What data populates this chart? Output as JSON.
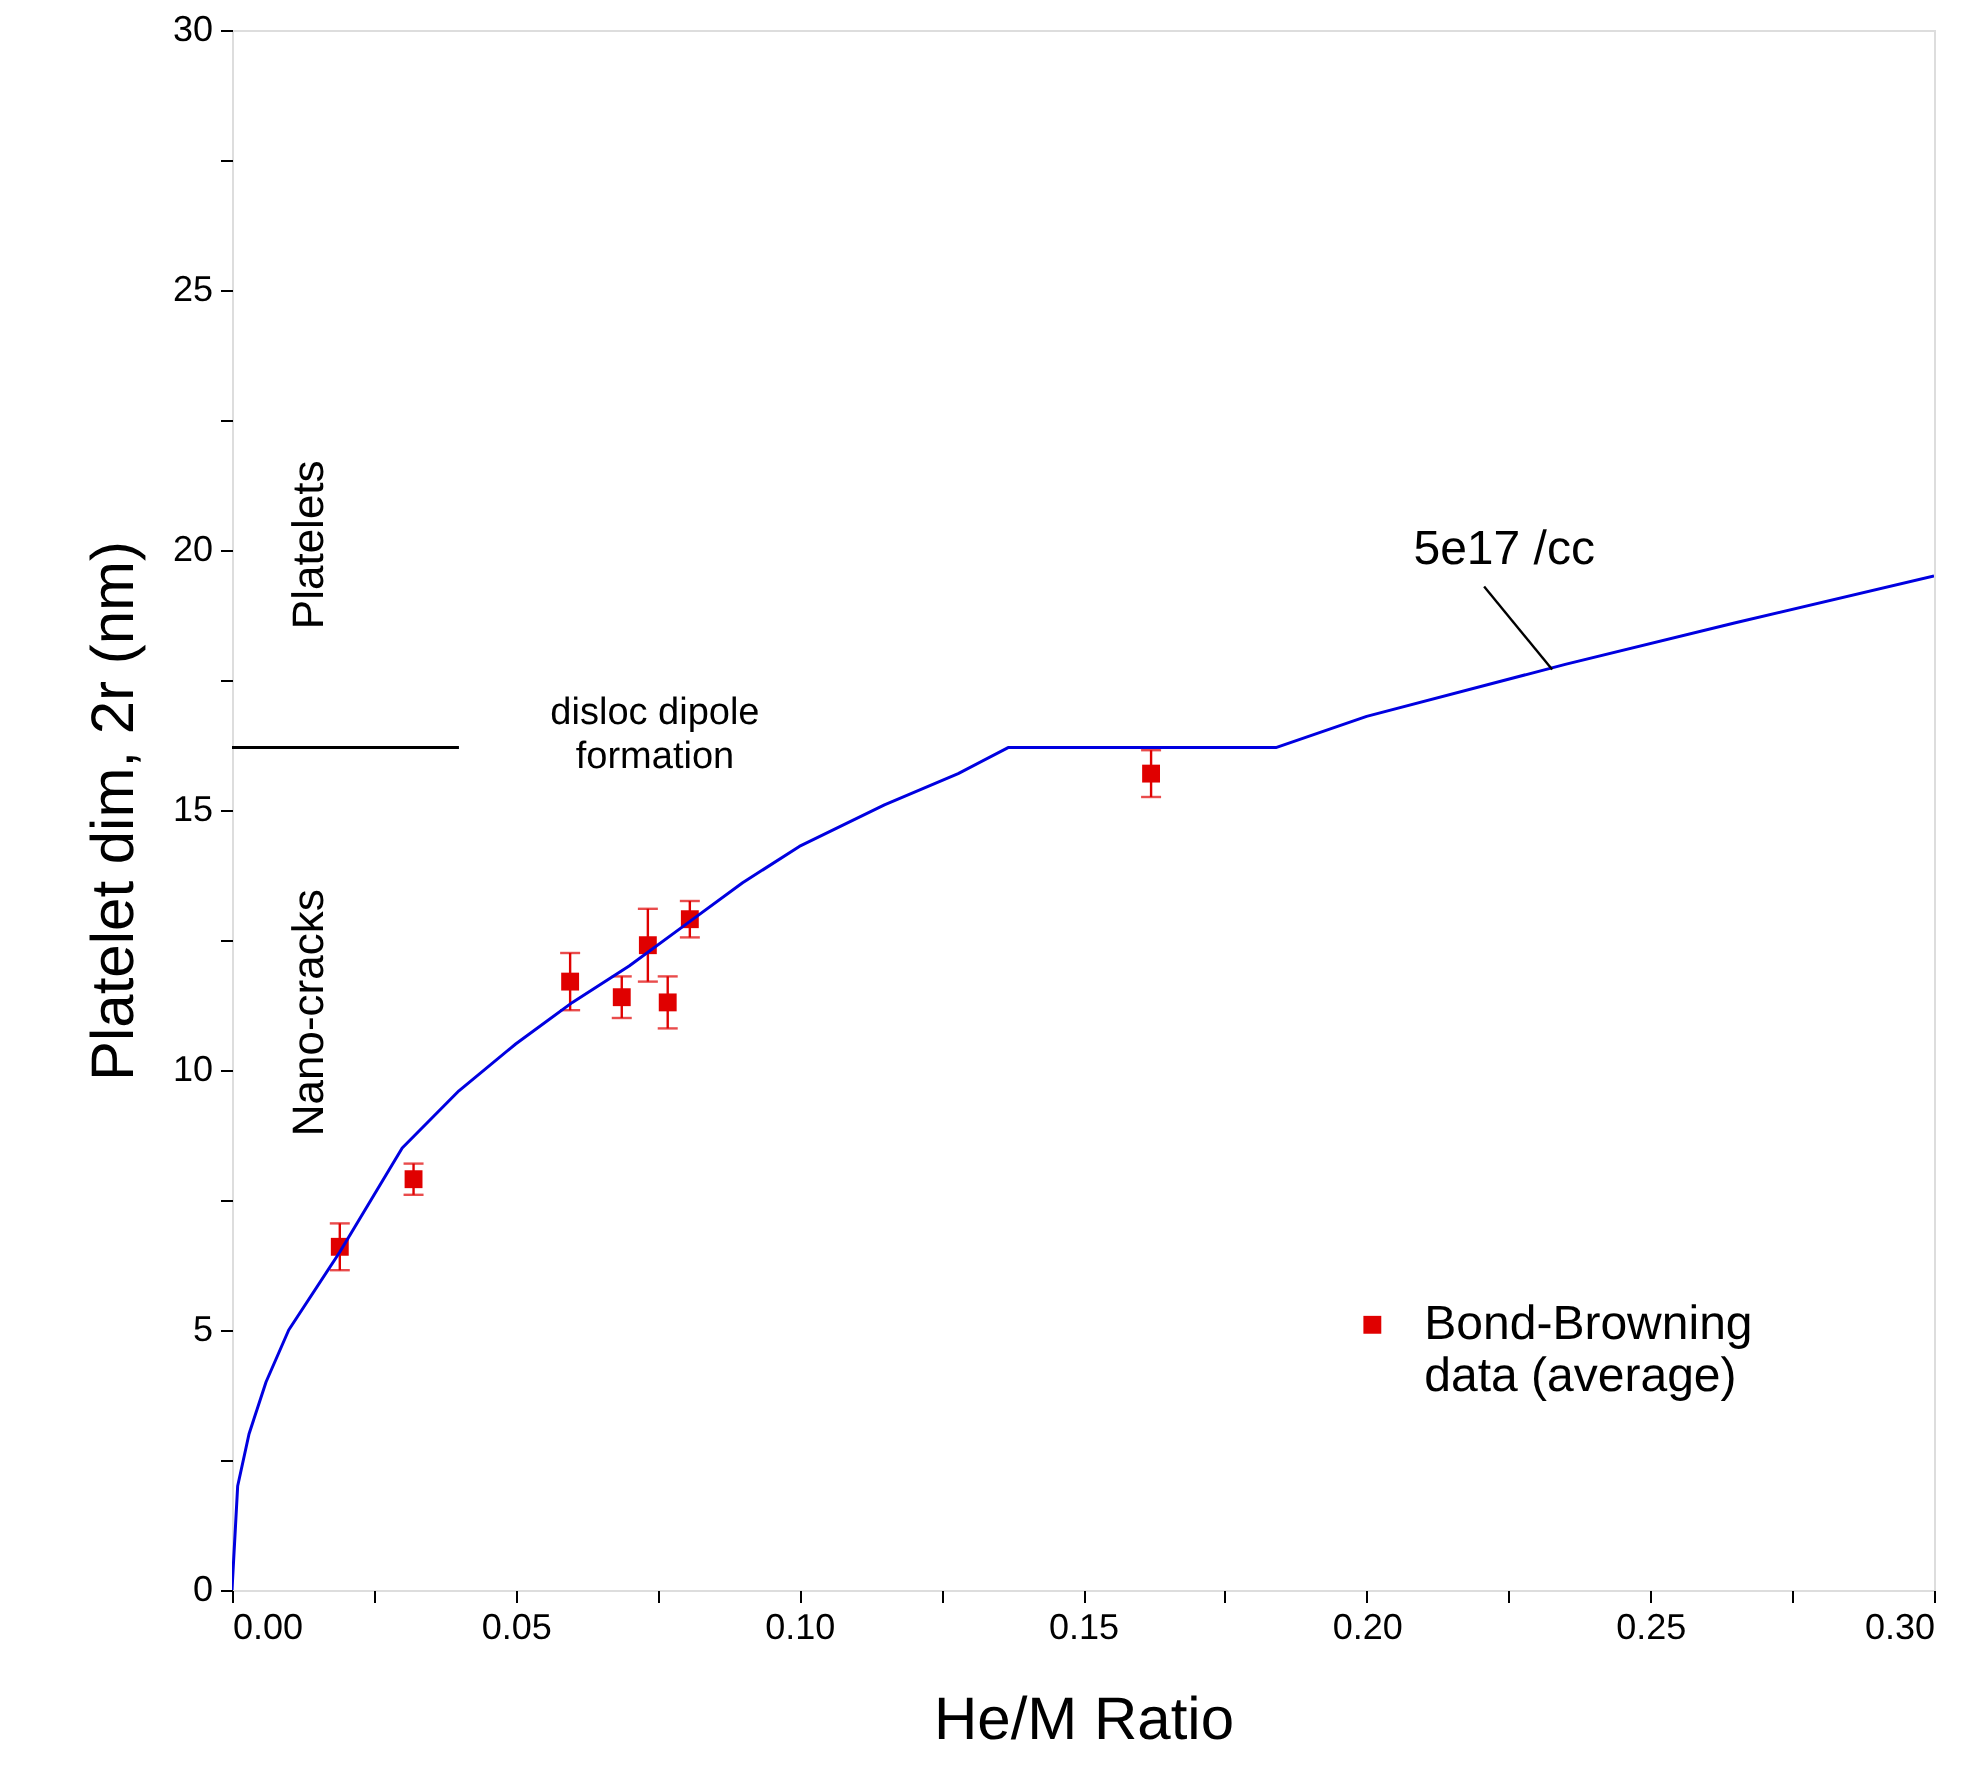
{
  "chart_data": {
    "type": "scatter",
    "xlabel": "He/M Ratio",
    "ylabel": "Platelet dim, 2r (nm)",
    "xlim": [
      0,
      0.3
    ],
    "ylim": [
      0,
      30
    ],
    "xticks": [
      {
        "value": 0,
        "label": "0.00"
      },
      {
        "value": 0.025,
        "label": null
      },
      {
        "value": 0.05,
        "label": "0.05"
      },
      {
        "value": 0.075,
        "label": null
      },
      {
        "value": 0.1,
        "label": "0.10"
      },
      {
        "value": 0.125,
        "label": null
      },
      {
        "value": 0.15,
        "label": "0.15"
      },
      {
        "value": 0.175,
        "label": null
      },
      {
        "value": 0.2,
        "label": "0.20"
      },
      {
        "value": 0.225,
        "label": null
      },
      {
        "value": 0.25,
        "label": "0.25"
      },
      {
        "value": 0.275,
        "label": null
      },
      {
        "value": 0.3,
        "label": "0.30"
      }
    ],
    "yticks": [
      0,
      {
        "value": 2.5,
        "label": null
      },
      5,
      {
        "value": 7.5,
        "label": null
      },
      10,
      {
        "value": 12.5,
        "label": null
      },
      15,
      {
        "value": 17.5,
        "label": null
      },
      20,
      {
        "value": 22.5,
        "label": null
      },
      25,
      {
        "value": 27.5,
        "label": null
      },
      30
    ],
    "grid": false,
    "legend": "bottom right",
    "marker": "square",
    "series": [
      {
        "name": "Bond-Browning data (average)",
        "color": "#e00000",
        "x": [
          0.019,
          0.032,
          0.0596,
          0.0687,
          0.0733,
          0.0768,
          0.0807,
          0.162
        ],
        "values": [
          6.6,
          7.9,
          11.7,
          11.4,
          12.4,
          11.3,
          12.9,
          15.7
        ],
        "errors": [
          0.45,
          0.3,
          0.55,
          0.4,
          0.7,
          0.5,
          0.35,
          0.45
        ]
      },
      {
        "type": "line",
        "color": "#0000e0",
        "marker": "none",
        "x": [
          0,
          0.001,
          0.003,
          0.006,
          0.01,
          0.019,
          0.03,
          0.04,
          0.05,
          0.06,
          0.07,
          0.08,
          0.09,
          0.1,
          0.115,
          0.128,
          0.1368,
          0.184,
          0.2,
          0.235,
          0.265,
          0.3
        ],
        "values": [
          0,
          2,
          3,
          4,
          5,
          6.5,
          8.5,
          9.6,
          10.5,
          11.3,
          12,
          12.8,
          13.6,
          14.3,
          15.1,
          15.7,
          16.2,
          16.2,
          16.8,
          17.8,
          18.6,
          19.5
        ]
      },
      {
        "type": "line",
        "color": "#000000",
        "marker": "none",
        "x": [
          0,
          0.04
        ],
        "values": [
          16.2,
          16.2
        ]
      }
    ],
    "annotations": [
      {
        "text": "5e17 /cc",
        "x": 0.2327,
        "y": 17.7
      },
      {
        "text": "disloc dipole formation",
        "x": 0.04,
        "y": 16.2
      },
      "Platelets",
      "Nano-cracks"
    ]
  }
}
